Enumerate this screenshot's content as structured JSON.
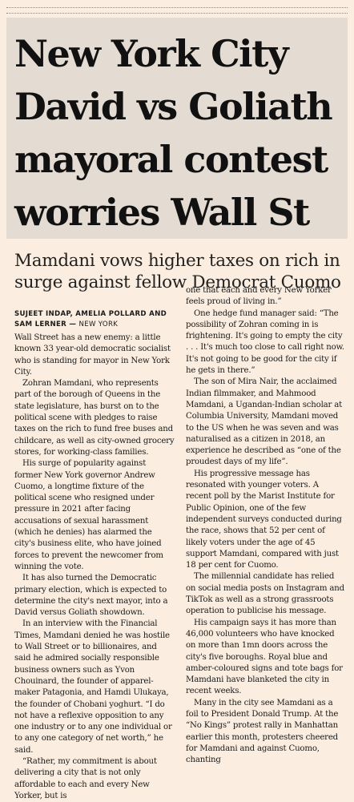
{
  "headline": "New York City David vs Goliath mayoral contest worries Wall St",
  "subheadline": "Mamdani vows higher taxes on rich in surge against fellow Democrat Cuomo",
  "byline": {
    "authors": "SUJEET INDAP, AMELIA POLLARD AND SAM LERNER",
    "location": "NEW YORK"
  },
  "left_column": [
    "Wall Street has a new enemy: a little known 33 year-old democratic socialist who is standing for mayor in New York City.",
    "Zohran Mamdani, who represents part of the borough of Queens in the state legislature, has burst on to the political scene with pledges to raise taxes on the rich to fund free buses and childcare, as well as city-owned grocery stores, for working-class families.",
    "His surge of popularity against former New York governor Andrew Cuomo, a longtime fixture of the political scene who resigned under pressure in 2021 after facing accusations of sexual harassment (which he denies) has alarmed the city's business elite, who have joined forces to prevent the newcomer from winning the vote.",
    "It has also turned the Democratic primary election, which is expected to determine the city's next mayor, into a David versus Goliath showdown.",
    "In an interview with the Financial Times, Mamdani denied he was hostile to Wall Street or to billionaires, and said he admired socially responsible business owners such as Yvon Chouinard, the founder of apparel-maker Patagonia, and Hamdi Ulukaya, the founder of Chobani yoghurt. “I do not have a reflexive opposition to any one industry or to any one individual or to any one category of net worth,” he said.",
    "“Rather, my commitment is about delivering a city that is not only affordable to each and every New Yorker, but is"
  ],
  "right_column_continuation": "one that each and every New Yorker feels proud of living in.”",
  "right_column": [
    "One hedge fund manager said: “The possibility of Zohran coming in is frightening. It's going to empty the city . . . It's much too close to call right now. It's not going to be good for the city if he gets in there.”",
    "The son of Mira Nair, the acclaimed Indian filmmaker, and Mahmood Mamdani, a Ugandan-Indian scholar at Columbia University, Mamdani moved to the US when he was seven and was naturalised as a citizen in 2018, an experience he described as “one of the proudest days of my life”.",
    "His progressive message has resonated with younger voters. A recent poll by the Marist Institute for Public Opinion, one of the few independent surveys conducted during the race, shows that 52 per cent of likely voters under the age of 45 support Mamdani, compared with just 18 per cent for Cuomo.",
    "The millennial candidate has relied on social media posts on Instagram and TikTok as well as a strong grassroots operation to publicise his message.",
    "His campaign says it has more than 46,000 volunteers who have knocked on more than 1mn doors across the city's five boroughs. Royal blue and amber-coloured signs and tote bags for Mamdani have blanketed the city in recent weeks.",
    "Many in the city see Mamdani as a foil to President Donald Trump. At the “No Kings” protest rally in Manhattan earlier this month, protesters cheered for Mamdani and against Cuomo, chanting"
  ]
}
